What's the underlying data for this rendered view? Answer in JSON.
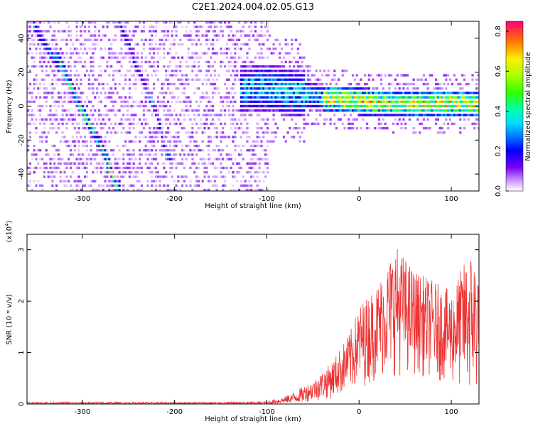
{
  "title": "C2E1.2024.004.02.05.G13",
  "chart_data": [
    {
      "type": "heatmap",
      "name": "spectrogram",
      "xlabel": "Height of straight line (km)",
      "ylabel": "Frequency (Hz)",
      "xlim": [
        -360,
        130
      ],
      "ylim": [
        -50,
        50
      ],
      "xticks": [
        -300,
        -200,
        -100,
        0,
        100
      ],
      "yticks": [
        -40,
        -20,
        0,
        20,
        40
      ],
      "colorbar": {
        "label": "Normalized spectral amplitude",
        "range": [
          0,
          0.85
        ],
        "ticks": [
          "0.0",
          "0.2",
          "0.4",
          "0.6",
          "0.8"
        ]
      },
      "features": [
        {
          "name": "main echo",
          "points": [
            [
              -100,
              10
            ],
            [
              -50,
              5
            ],
            [
              0,
              2
            ],
            [
              50,
              1
            ],
            [
              125,
              1
            ]
          ],
          "peak_amplitude": 0.8
        },
        {
          "name": "fast streak",
          "points": [
            [
              -325,
              25
            ],
            [
              -300,
              -5
            ],
            [
              -275,
              -30
            ],
            [
              -265,
              -48
            ]
          ],
          "peak_amplitude": 0.6
        },
        {
          "name": "secondary streak",
          "points": [
            [
              -260,
              48
            ],
            [
              -240,
              20
            ],
            [
              -220,
              -5
            ],
            [
              -210,
              -30
            ]
          ],
          "peak_amplitude": 0.3
        }
      ]
    },
    {
      "type": "line",
      "name": "snr",
      "xlabel": "Height of straight line (km)",
      "ylabel": "SNR (10 * v/v)",
      "y_multiplier": "(x10",
      "y_exponent": "4",
      "y_multiplier_close": ")",
      "xlim": [
        -360,
        130
      ],
      "ylim": [
        0,
        3.3
      ],
      "xticks": [
        -300,
        -200,
        -100,
        0,
        100
      ],
      "yticks": [
        0,
        1,
        2,
        3
      ],
      "color": "#ee3333",
      "series": [
        {
          "name": "SNR envelope",
          "x": [
            -360,
            -250,
            -150,
            -100,
            -80,
            -50,
            -30,
            -10,
            0,
            20,
            40,
            60,
            80,
            100,
            110,
            120,
            130
          ],
          "low": [
            0,
            0,
            0,
            0,
            0.02,
            0.05,
            0.1,
            0.2,
            0.3,
            0.45,
            0.55,
            0.55,
            0.5,
            0.35,
            0.25,
            0.1,
            0.1
          ],
          "high": [
            0.04,
            0.04,
            0.04,
            0.05,
            0.15,
            0.45,
            0.8,
            1.4,
            1.9,
            2.35,
            3.1,
            2.6,
            2.4,
            2.2,
            2.6,
            3.0,
            2.8
          ]
        }
      ]
    }
  ]
}
